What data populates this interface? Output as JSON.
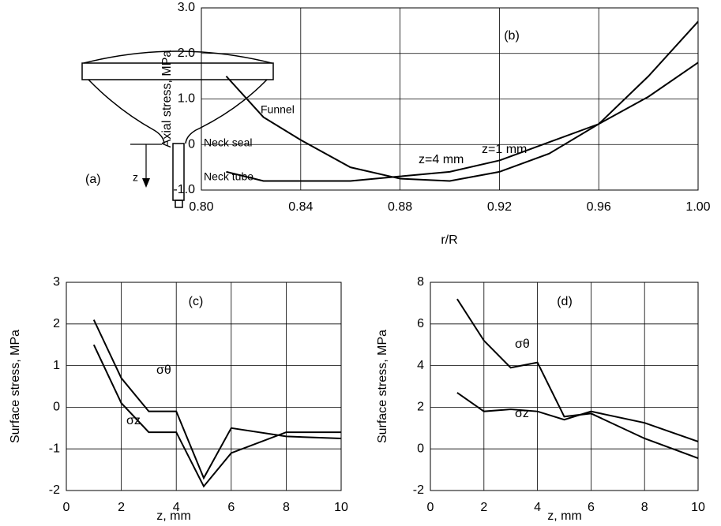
{
  "diagram": {
    "label": "(a)",
    "parts": [
      "Funnel",
      "Neck seal",
      "Neck tube"
    ],
    "axis": "z"
  },
  "chart_data": [
    {
      "type": "line",
      "title": "(b)",
      "xlabel": "r/R",
      "ylabel": "Axial stress, MPa",
      "x": [
        0.81,
        0.825,
        0.84,
        0.86,
        0.88,
        0.9,
        0.92,
        0.94,
        0.96,
        0.98,
        1.0
      ],
      "series": [
        {
          "name": "z=1 mm",
          "color": "#000000",
          "values": [
            1.5,
            0.6,
            0.1,
            -0.5,
            -0.75,
            -0.8,
            -0.6,
            -0.2,
            0.45,
            1.5,
            2.7
          ]
        },
        {
          "name": "z=4 mm",
          "color": "#000000",
          "values": [
            -0.6,
            -0.8,
            -0.8,
            -0.8,
            -0.7,
            -0.6,
            -0.35,
            0.05,
            0.45,
            1.05,
            1.8
          ]
        }
      ],
      "xlim": [
        0.8,
        1.0
      ],
      "xticks": [
        {
          "value": 0.8,
          "label": "0.80"
        },
        {
          "value": 0.84,
          "label": "0.84"
        },
        {
          "value": 0.88,
          "label": "0.88"
        },
        {
          "value": 0.92,
          "label": "0.92"
        },
        {
          "value": 0.96,
          "label": "0.96"
        },
        {
          "value": 1.0,
          "label": "1.00"
        }
      ],
      "ylim": [
        -1.0,
        3.0
      ],
      "yticks": [
        {
          "value": -1.0,
          "label": "-1.0"
        },
        0,
        {
          "value": 1.0,
          "label": "1.0"
        },
        {
          "value": 2.0,
          "label": "2.0"
        },
        {
          "value": 3.0,
          "label": "3.0"
        }
      ],
      "grid": true
    },
    {
      "type": "line",
      "title": "(c)",
      "xlabel": "z, mm",
      "ylabel": "Surface stress, MPa",
      "x": [
        1,
        2,
        3,
        4,
        5,
        6,
        8,
        10
      ],
      "series": [
        {
          "name": "σθ",
          "color": "#000000",
          "values": [
            2.1,
            0.7,
            -0.1,
            -0.1,
            -1.7,
            -0.5,
            -0.7,
            -0.75
          ]
        },
        {
          "name": "σz",
          "color": "#000000",
          "values": [
            1.5,
            0.1,
            -0.6,
            -0.6,
            -1.9,
            -1.1,
            -0.6,
            -0.6
          ]
        }
      ],
      "xlim": [
        0,
        10
      ],
      "xticks": [
        0,
        2,
        4,
        6,
        8,
        10
      ],
      "ylim": [
        -2,
        3
      ],
      "yticks": [
        -2,
        -1,
        0,
        1,
        2,
        3
      ],
      "grid": true
    },
    {
      "type": "line",
      "title": "(d)",
      "xlabel": "z, mm",
      "ylabel": "Surface stress, MPa",
      "x": [
        1,
        2,
        3,
        4,
        5,
        6,
        8,
        10
      ],
      "series": [
        {
          "name": "σθ",
          "color": "#000000",
          "values": [
            7.2,
            5.2,
            3.9,
            4.15,
            1.55,
            1.7,
            0.5,
            -0.45
          ]
        },
        {
          "name": "σz",
          "color": "#000000",
          "values": [
            2.7,
            1.8,
            1.9,
            1.8,
            1.4,
            1.8,
            1.25,
            0.35
          ]
        }
      ],
      "xlim": [
        0,
        10
      ],
      "xticks": [
        0,
        2,
        4,
        6,
        8,
        10
      ],
      "ylim": [
        -2,
        8
      ],
      "yticks": [
        -2,
        0,
        2,
        4,
        6,
        8
      ],
      "grid": true
    }
  ]
}
